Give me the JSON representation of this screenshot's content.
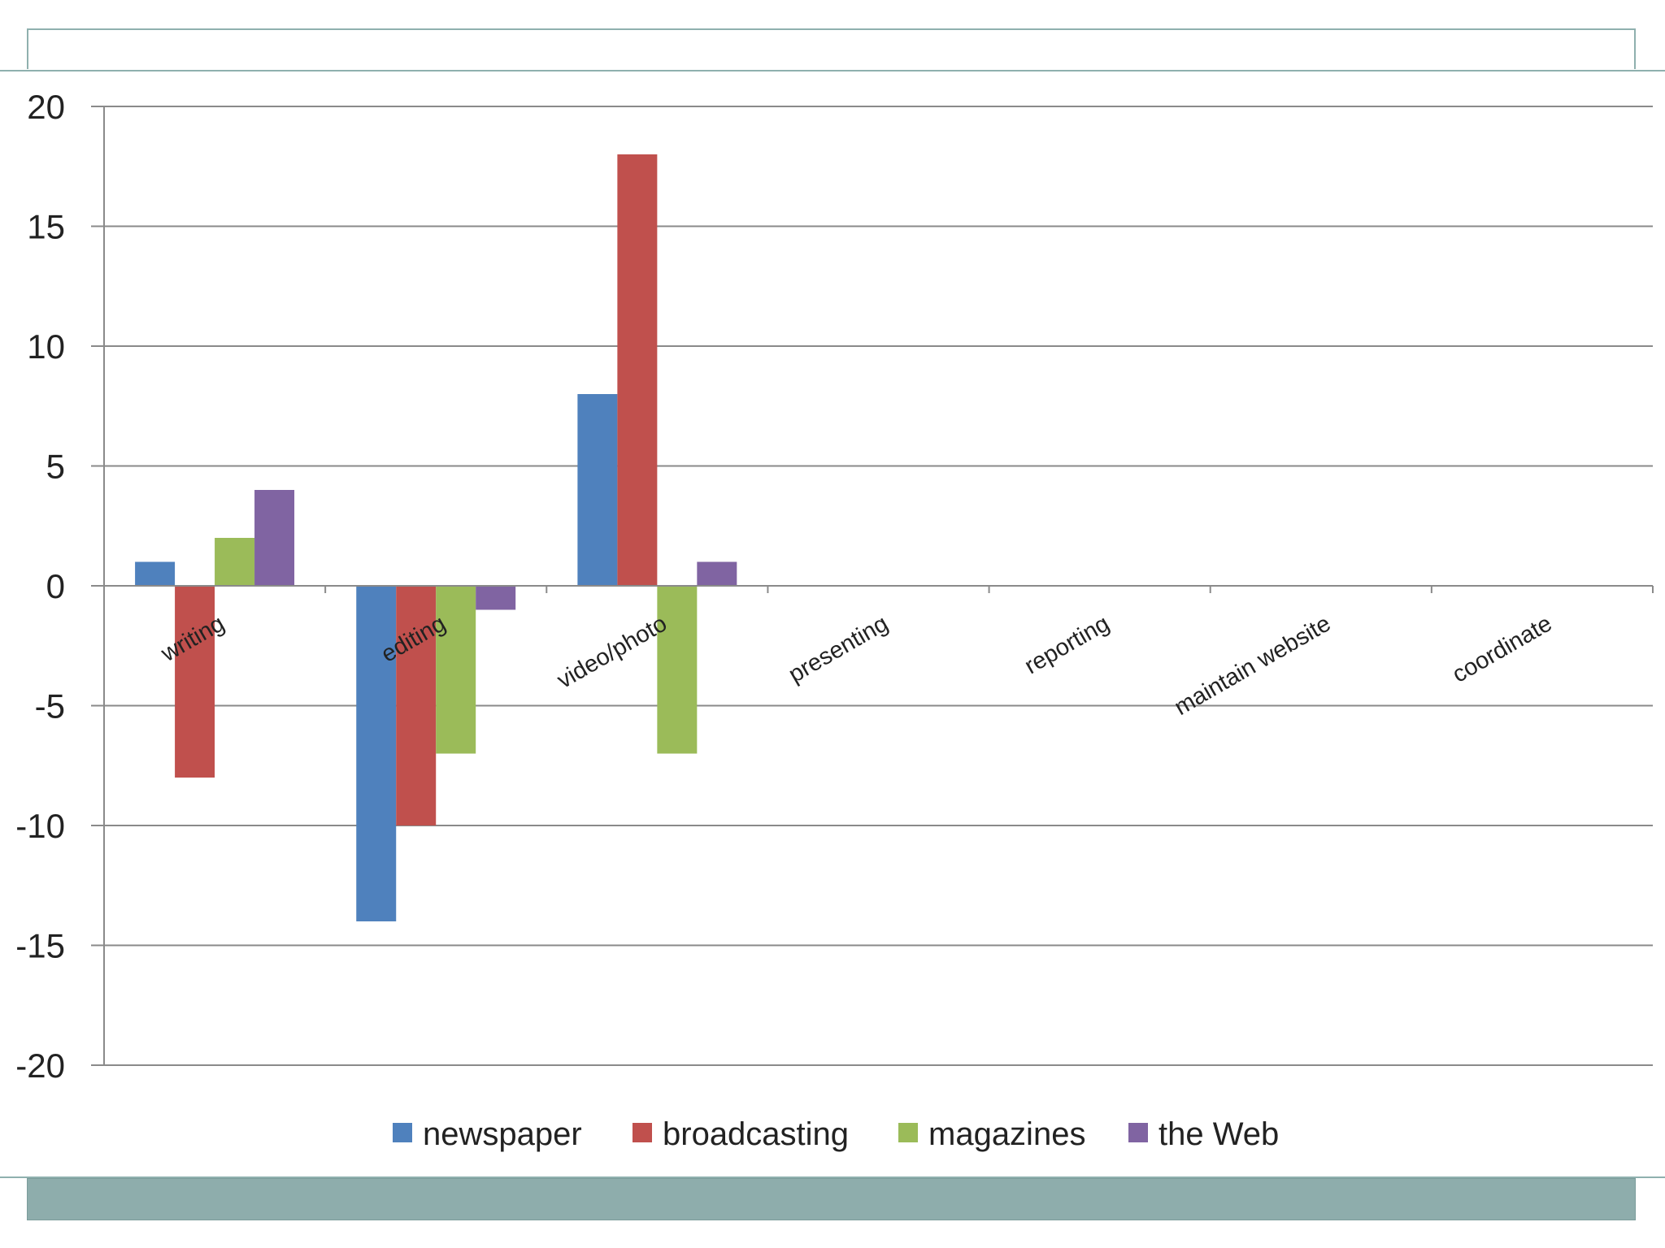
{
  "chart_data": {
    "type": "bar",
    "title": "",
    "xlabel": "",
    "ylabel": "",
    "ylim": [
      -20,
      20
    ],
    "yticks": [
      20,
      15,
      10,
      5,
      0,
      -5,
      -10,
      -15,
      -20
    ],
    "grid": true,
    "legend_position": "bottom",
    "categories": [
      "writing",
      "editing",
      "video/photo",
      "presenting",
      "reporting",
      "maintain website",
      "coordinate"
    ],
    "series": [
      {
        "name": "newspaper",
        "color": "#4f81bd",
        "values": [
          1,
          -14,
          8,
          0,
          0,
          0,
          0
        ]
      },
      {
        "name": "broadcasting",
        "color": "#c0504d",
        "values": [
          -8,
          -10,
          18,
          0,
          0,
          0,
          0
        ]
      },
      {
        "name": "magazines",
        "color": "#9bbb59",
        "values": [
          2,
          -7,
          -7,
          0,
          0,
          0,
          0
        ]
      },
      {
        "name": "the Web",
        "color": "#8064a2",
        "values": [
          4,
          -1,
          1,
          0,
          0,
          0,
          0
        ]
      }
    ]
  }
}
